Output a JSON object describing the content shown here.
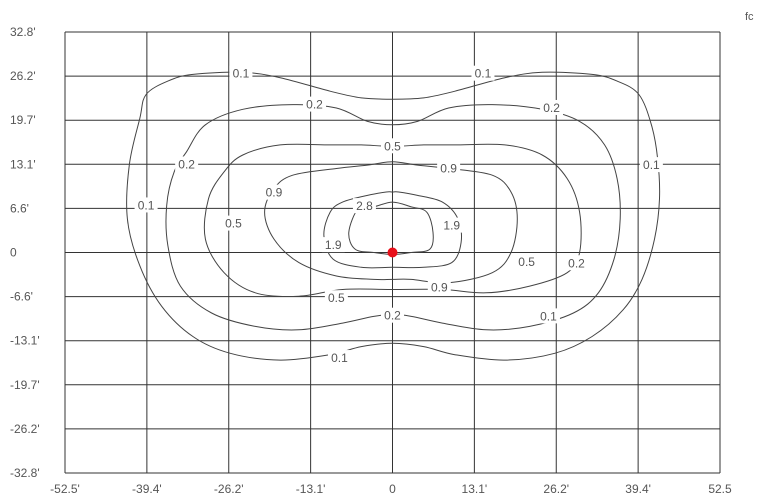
{
  "chart_data": {
    "type": "contour",
    "unit": "fc",
    "x_ticks": [
      "-52.5'",
      "-39.4'",
      "-26.2'",
      "-13.1'",
      "0",
      "13.1'",
      "26.2'",
      "39.4'",
      "52.5"
    ],
    "y_ticks": [
      "32.8'",
      "26.2'",
      "19.7'",
      "13.1'",
      "6.6'",
      "0",
      "-6.6'",
      "-13.1'",
      "-19.7'",
      "-26.2'",
      "-32.8'"
    ],
    "xlim": [
      -52.5,
      52.5
    ],
    "ylim": [
      -32.8,
      32.8
    ],
    "grid": true,
    "source_point": {
      "x": 0,
      "y": 0,
      "color": "#e8101a"
    },
    "contours": [
      {
        "level": 0.1,
        "points": [
          [
            -40.5,
            20
          ],
          [
            -39.5,
            23.5
          ],
          [
            -36,
            25.5
          ],
          [
            -32,
            26.5
          ],
          [
            -24,
            26.8
          ],
          [
            -18,
            26
          ],
          [
            -10,
            24
          ],
          [
            -5,
            23
          ],
          [
            0,
            22.8
          ],
          [
            5,
            23
          ],
          [
            10,
            24
          ],
          [
            18,
            26
          ],
          [
            24,
            26.8
          ],
          [
            32,
            26.5
          ],
          [
            36,
            25.5
          ],
          [
            39.5,
            23.5
          ],
          [
            41.5,
            19
          ],
          [
            42.5,
            14
          ],
          [
            42.8,
            8
          ],
          [
            42,
            2
          ],
          [
            40,
            -4
          ],
          [
            37,
            -8.5
          ],
          [
            32,
            -12.5
          ],
          [
            26,
            -15
          ],
          [
            18,
            -16
          ],
          [
            10,
            -15.2
          ],
          [
            5,
            -14
          ],
          [
            0,
            -13.5
          ],
          [
            -5,
            -14
          ],
          [
            -10,
            -15.2
          ],
          [
            -18,
            -16
          ],
          [
            -26,
            -15
          ],
          [
            -32,
            -12.5
          ],
          [
            -37,
            -8
          ],
          [
            -40.5,
            -2
          ],
          [
            -42.5,
            5
          ],
          [
            -42.2,
            13
          ]
        ],
        "labels": [
          {
            "text": "0.1",
            "x": -24.3,
            "y": 26.6
          },
          {
            "text": "0.1",
            "x": 14.5,
            "y": 26.6
          },
          {
            "text": "0.1",
            "x": 41.5,
            "y": 13
          },
          {
            "text": "0.1",
            "x": -39.5,
            "y": 7
          },
          {
            "text": "0.1",
            "x": 25,
            "y": -9.5
          },
          {
            "text": "0.1",
            "x": -8.5,
            "y": -15.7
          }
        ]
      },
      {
        "level": 0.2,
        "points": [
          [
            -33,
            15
          ],
          [
            -30,
            19
          ],
          [
            -24,
            21.3
          ],
          [
            -16,
            22
          ],
          [
            -9,
            21.5
          ],
          [
            -4,
            19.5
          ],
          [
            0,
            19
          ],
          [
            4,
            19.5
          ],
          [
            9,
            21.5
          ],
          [
            16,
            22
          ],
          [
            24,
            21.3
          ],
          [
            30,
            19.5
          ],
          [
            34,
            16
          ],
          [
            36,
            11
          ],
          [
            36.5,
            5
          ],
          [
            35.5,
            -1
          ],
          [
            33,
            -6
          ],
          [
            29,
            -9
          ],
          [
            22,
            -11
          ],
          [
            15,
            -11.5
          ],
          [
            8,
            -10.5
          ],
          [
            3,
            -9.5
          ],
          [
            0,
            -9.2
          ],
          [
            -3,
            -9.5
          ],
          [
            -8,
            -10.5
          ],
          [
            -15,
            -11.5
          ],
          [
            -22,
            -11
          ],
          [
            -29,
            -9
          ],
          [
            -34,
            -5
          ],
          [
            -36,
            1
          ],
          [
            -36.2,
            7
          ],
          [
            -35,
            12
          ]
        ],
        "labels": [
          {
            "text": "0.2",
            "x": -12.5,
            "y": 22
          },
          {
            "text": "0.2",
            "x": 25.5,
            "y": 21.5
          },
          {
            "text": "0.2",
            "x": 29.5,
            "y": -1.6
          },
          {
            "text": "0.2",
            "x": -33,
            "y": 13.1
          },
          {
            "text": "0.2",
            "x": 0,
            "y": -9.4
          }
        ]
      },
      {
        "level": 0.5,
        "points": [
          [
            -27,
            12
          ],
          [
            -24,
            14.5
          ],
          [
            -18,
            16
          ],
          [
            -10,
            16
          ],
          [
            -5,
            16
          ],
          [
            0,
            15.8
          ],
          [
            5,
            16
          ],
          [
            10,
            16
          ],
          [
            18,
            16
          ],
          [
            24,
            14.5
          ],
          [
            28,
            11
          ],
          [
            30,
            6
          ],
          [
            30,
            0
          ],
          [
            28,
            -3
          ],
          [
            22,
            -5
          ],
          [
            15,
            -6
          ],
          [
            8,
            -5.5
          ],
          [
            0,
            -5.5
          ],
          [
            -8,
            -5.5
          ],
          [
            -15,
            -6.5
          ],
          [
            -22,
            -6
          ],
          [
            -27,
            -3
          ],
          [
            -30,
            2
          ],
          [
            -29.5,
            8
          ]
        ],
        "labels": [
          {
            "text": "0.5",
            "x": 0,
            "y": 15.8
          },
          {
            "text": "0.5",
            "x": -25.5,
            "y": 4.3
          },
          {
            "text": "0.5",
            "x": 21.5,
            "y": -1.4
          },
          {
            "text": "0.5",
            "x": -9,
            "y": -6.8
          }
        ]
      },
      {
        "level": 0.9,
        "points": [
          [
            -19,
            9.5
          ],
          [
            -16,
            11.5
          ],
          [
            -9,
            12.5
          ],
          [
            -4,
            13
          ],
          [
            0,
            13.5
          ],
          [
            4,
            13
          ],
          [
            9,
            12.5
          ],
          [
            16,
            11.5
          ],
          [
            19,
            9
          ],
          [
            20,
            5
          ],
          [
            19,
            0
          ],
          [
            16,
            -3
          ],
          [
            9,
            -4.5
          ],
          [
            3,
            -4
          ],
          [
            0,
            -4
          ],
          [
            -3,
            -4
          ],
          [
            -9,
            -3.5
          ],
          [
            -15,
            -1.5
          ],
          [
            -19,
            2
          ],
          [
            -20.5,
            6
          ]
        ],
        "labels": [
          {
            "text": "0.9",
            "x": 9,
            "y": 12.5
          },
          {
            "text": "0.9",
            "x": -19,
            "y": 8.9
          },
          {
            "text": "0.9",
            "x": 7.5,
            "y": -5.2
          }
        ]
      },
      {
        "level": 1.9,
        "points": [
          [
            -10,
            6
          ],
          [
            -8,
            7.5
          ],
          [
            -4,
            8.5
          ],
          [
            -1,
            9
          ],
          [
            0,
            9
          ],
          [
            1,
            9
          ],
          [
            4,
            8.5
          ],
          [
            8,
            7.5
          ],
          [
            10.5,
            5
          ],
          [
            11,
            1.5
          ],
          [
            9.5,
            -1.5
          ],
          [
            5,
            -2.2
          ],
          [
            0,
            -2.2
          ],
          [
            -5,
            -2.2
          ],
          [
            -9.5,
            -1
          ],
          [
            -11,
            2.5
          ]
        ],
        "labels": [
          {
            "text": "1.9",
            "x": 9.5,
            "y": 4
          },
          {
            "text": "1.9",
            "x": -9.5,
            "y": 1.1
          }
        ]
      },
      {
        "level": 2.8,
        "points": [
          [
            -5.5,
            6.5
          ],
          [
            -3,
            6.8
          ],
          [
            0,
            7.5
          ],
          [
            3,
            6.8
          ],
          [
            5.5,
            6
          ],
          [
            6.5,
            3
          ],
          [
            6,
            0.5
          ],
          [
            3,
            0
          ],
          [
            0,
            -0.3
          ],
          [
            -3,
            0
          ],
          [
            -6,
            0.5
          ],
          [
            -7,
            3
          ]
        ],
        "labels": [
          {
            "text": "2.8",
            "x": -4.5,
            "y": 6.9
          }
        ]
      }
    ]
  }
}
